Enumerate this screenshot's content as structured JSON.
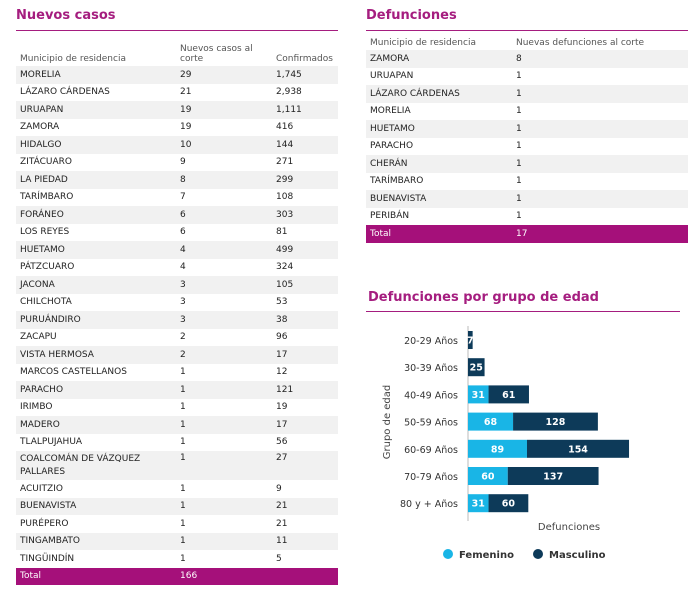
{
  "nuevos": {
    "title": "Nuevos casos",
    "headers": [
      "Municipio de residencia",
      "Nuevos casos al corte",
      "Confirmados"
    ],
    "rows": [
      [
        "MORELIA",
        "29",
        "1,745"
      ],
      [
        "LÁZARO CÁRDENAS",
        "21",
        "2,938"
      ],
      [
        "URUAPAN",
        "19",
        "1,111"
      ],
      [
        "ZAMORA",
        "19",
        "416"
      ],
      [
        "HIDALGO",
        "10",
        "144"
      ],
      [
        "ZITÁCUARO",
        "9",
        "271"
      ],
      [
        "LA PIEDAD",
        "8",
        "299"
      ],
      [
        "TARÍMBARO",
        "7",
        "108"
      ],
      [
        "FORÁNEO",
        "6",
        "303"
      ],
      [
        "LOS REYES",
        "6",
        "81"
      ],
      [
        "HUETAMO",
        "4",
        "499"
      ],
      [
        "PÁTZCUARO",
        "4",
        "324"
      ],
      [
        "JACONA",
        "3",
        "105"
      ],
      [
        "CHILCHOTA",
        "3",
        "53"
      ],
      [
        "PURUÁNDIRO",
        "3",
        "38"
      ],
      [
        "ZACAPU",
        "2",
        "96"
      ],
      [
        "VISTA HERMOSA",
        "2",
        "17"
      ],
      [
        "MARCOS CASTELLANOS",
        "1",
        "12"
      ],
      [
        "PARACHO",
        "1",
        "121"
      ],
      [
        "IRIMBO",
        "1",
        "19"
      ],
      [
        "MADERO",
        "1",
        "17"
      ],
      [
        "TLALPUJAHUA",
        "1",
        "56"
      ],
      [
        "COALCOMÁN DE VÁZQUEZ PALLARES",
        "1",
        "27"
      ],
      [
        "ACUITZIO",
        "1",
        "9"
      ],
      [
        "BUENAVISTA",
        "1",
        "21"
      ],
      [
        "PURÉPERO",
        "1",
        "21"
      ],
      [
        "TINGAMBATO",
        "1",
        "11"
      ],
      [
        "TINGÜINDÍN",
        "1",
        "5"
      ]
    ],
    "total_label": "Total",
    "total_value": "166"
  },
  "defunciones": {
    "title": "Defunciones",
    "headers": [
      "Municipio de residencia",
      "Nuevas defunciones al corte"
    ],
    "rows": [
      [
        "ZAMORA",
        "8"
      ],
      [
        "URUAPAN",
        "1"
      ],
      [
        "LÁZARO CÁRDENAS",
        "1"
      ],
      [
        "MORELIA",
        "1"
      ],
      [
        "HUETAMO",
        "1"
      ],
      [
        "PARACHO",
        "1"
      ],
      [
        "CHERÁN",
        "1"
      ],
      [
        "TARÍMBARO",
        "1"
      ],
      [
        "BUENAVISTA",
        "1"
      ],
      [
        "PERIBÁN",
        "1"
      ]
    ],
    "total_label": "Total",
    "total_value": "17"
  },
  "chart_data": {
    "type": "bar",
    "orientation": "horizontal",
    "stacked": true,
    "title": "Defunciones por grupo de edad",
    "xlabel": "Defunciones",
    "ylabel": "Grupo de edad",
    "categories": [
      "20-29 Años",
      "30-39 Años",
      "40-49 Años",
      "50-59 Años",
      "60-69 Años",
      "70-79 Años",
      "80 y + Años"
    ],
    "series": [
      {
        "name": "Femenino",
        "color": "#19b5e6",
        "values": [
          null,
          null,
          31,
          68,
          89,
          60,
          31
        ]
      },
      {
        "name": "Masculino",
        "color": "#0d3a59",
        "values": [
          7,
          25,
          61,
          128,
          154,
          137,
          60
        ]
      }
    ],
    "legend_position": "bottom",
    "grid": false
  }
}
